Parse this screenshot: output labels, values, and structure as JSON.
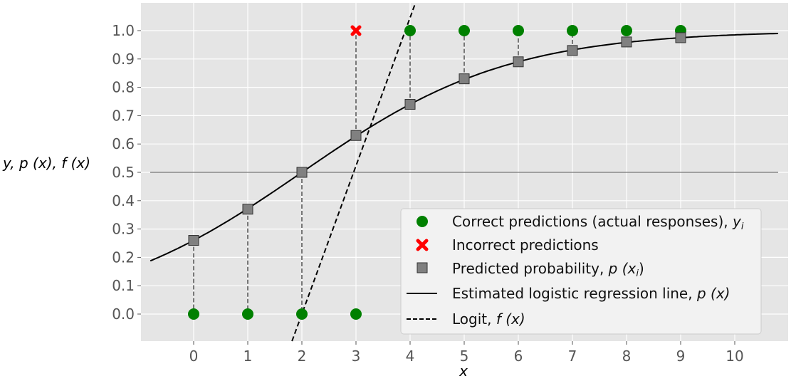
{
  "chart_data": {
    "type": "scatter",
    "title": "",
    "xlabel": "x",
    "ylabel": "y,  p (x),  f (x)",
    "xlim": [
      -0.85,
      10.85
    ],
    "ylim": [
      -0.095,
      1.095
    ],
    "x_ticks": [
      "0",
      "1",
      "2",
      "3",
      "4",
      "5",
      "6",
      "7",
      "8",
      "9",
      "10"
    ],
    "y_ticks": [
      "0.0",
      "0.1",
      "0.2",
      "0.3",
      "0.4",
      "0.5",
      "0.6",
      "0.7",
      "0.8",
      "0.9",
      "1.0"
    ],
    "grid": true,
    "background": "#e5e5e5",
    "threshold_line": 0.5,
    "x": [
      0,
      1,
      2,
      3,
      4,
      5,
      6,
      7,
      8,
      9
    ],
    "series": [
      {
        "name": "Correct predictions (actual responses), y_i",
        "marker": "circle",
        "color": "#008000",
        "points": [
          [
            0,
            0
          ],
          [
            1,
            0
          ],
          [
            2,
            0
          ],
          [
            3,
            0
          ],
          [
            4,
            1
          ],
          [
            5,
            1
          ],
          [
            6,
            1
          ],
          [
            7,
            1
          ],
          [
            8,
            1
          ],
          [
            9,
            1
          ]
        ]
      },
      {
        "name": "Incorrect predictions",
        "marker": "x",
        "color": "#ff0000",
        "points": [
          [
            3,
            1
          ]
        ]
      },
      {
        "name": "Predicted probability, p (x_i)",
        "marker": "square",
        "color": "#808080",
        "points": [
          [
            0,
            0.26
          ],
          [
            1,
            0.37
          ],
          [
            2,
            0.5
          ],
          [
            3,
            0.63
          ],
          [
            4,
            0.74
          ],
          [
            5,
            0.83
          ],
          [
            6,
            0.89
          ],
          [
            7,
            0.93
          ],
          [
            8,
            0.96
          ],
          [
            9,
            0.975
          ]
        ]
      },
      {
        "name": "Estimated logistic regression line, p (x)",
        "line": "solid",
        "color": "#000000",
        "b0": -1.046,
        "b1": 0.523,
        "x_range": [
          -0.8,
          10.8
        ]
      },
      {
        "name": "Logit, f (x)",
        "line": "dashed",
        "color": "#000000",
        "b0": -1.046,
        "b1": 0.523
      }
    ],
    "legend_position": "lower right"
  },
  "legend": {
    "items": [
      {
        "label": "Correct predictions (actual responses), ",
        "math": "y",
        "sub": "i"
      },
      {
        "label": "Incorrect predictions",
        "math": "",
        "sub": ""
      },
      {
        "label": "Predicted probability, ",
        "math": "p (x",
        "sub": "i",
        "tail": ")"
      },
      {
        "label": "Estimated logistic regression line, ",
        "math": "p (x)",
        "sub": "",
        "tail": ""
      },
      {
        "label": "Logit, ",
        "math": "f (x)",
        "sub": "",
        "tail": ""
      }
    ]
  }
}
